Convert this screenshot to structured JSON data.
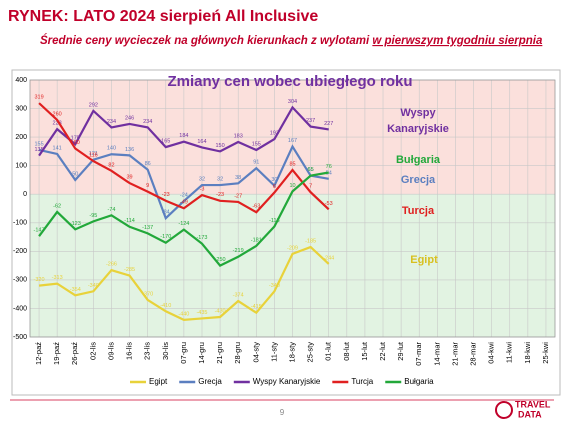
{
  "chart_data": {
    "type": "line",
    "header": "RYNEK: LATO 2024 sierpień All Inclusive",
    "subtitle": "Średnie ceny wycieczek na głównych kierunkach z wylotami",
    "subtitle_emphasis": "w pierwszym tygodniu sierpnia",
    "title": "Zmiany cen wobec ubiegłego roku",
    "categories": [
      "12-paź",
      "19-paź",
      "26-paź",
      "02-lis",
      "09-lis",
      "16-lis",
      "23-lis",
      "30-lis",
      "07-gru",
      "14-gru",
      "21-gru",
      "28-gru",
      "04-sty",
      "11-sty",
      "18-sty",
      "25-sty",
      "01-lut",
      "08-lut",
      "15-lut",
      "22-lut",
      "29-lut",
      "07-mar",
      "14-mar",
      "21-mar",
      "28-mar",
      "04-kwi",
      "11-kwi",
      "18-kwi",
      "25-kwi"
    ],
    "series": [
      {
        "name": "Egipt",
        "color": "#e8d23a",
        "values": [
          -320,
          -313,
          -354,
          -340,
          -266,
          -285,
          -370,
          -410,
          -440,
          -435,
          -430,
          -374,
          -415,
          -340,
          -209,
          -185,
          -244,
          null,
          null,
          null,
          null,
          null,
          null,
          null,
          null,
          null,
          null,
          null,
          null
        ]
      },
      {
        "name": "Grecja",
        "color": "#5b7fc0",
        "values": [
          155,
          141,
          50,
          121,
          140,
          136,
          86,
          -84,
          -24,
          32,
          32,
          38,
          91,
          30,
          167,
          65,
          54,
          null,
          null,
          null,
          null,
          null,
          null,
          null,
          null,
          null,
          null,
          null,
          null
        ]
      },
      {
        "name": "Wyspy Kanaryjskie",
        "color": "#7030a0",
        "values": [
          135,
          228,
          175,
          292,
          234,
          246,
          234,
          165,
          184,
          164,
          150,
          183,
          155,
          193,
          304,
          237,
          227,
          null,
          null,
          null,
          null,
          null,
          null,
          null,
          null,
          null,
          null,
          null,
          null
        ]
      },
      {
        "name": "Turcja",
        "color": "#e02020",
        "values": [
          319,
          260,
          160,
          116,
          82,
          39,
          9,
          -23,
          -49,
          -3,
          -23,
          -27,
          -63,
          6,
          85,
          7,
          -53,
          null,
          null,
          null,
          null,
          null,
          null,
          null,
          null,
          null,
          null,
          null,
          null
        ]
      },
      {
        "name": "Bułgaria",
        "color": "#22a83a",
        "values": [
          -147,
          -62,
          -123,
          -95,
          -74,
          -114,
          -137,
          -170,
          -124,
          -173,
          -250,
          -219,
          -181,
          -113,
          10,
          65,
          76,
          null,
          null,
          null,
          null,
          null,
          null,
          null,
          null,
          null,
          null,
          null,
          null
        ]
      }
    ],
    "annotations": [
      {
        "text": "Wyspy",
        "color": "#7030a0"
      },
      {
        "text": "Kanaryjskie",
        "color": "#7030a0"
      },
      {
        "text": "Bułgaria",
        "color": "#22a83a"
      },
      {
        "text": "Grecja",
        "color": "#5b7fc0"
      },
      {
        "text": "Turcja",
        "color": "#e02020"
      },
      {
        "text": "Egipt",
        "color": "#d8c020"
      }
    ],
    "ylim": [
      -500,
      400
    ],
    "yticks": [
      -500,
      -400,
      -300,
      -200,
      -100,
      0,
      100,
      200,
      300,
      400
    ],
    "grid": true,
    "legend": "bottom",
    "page_number": "9",
    "logo": [
      "TRAVEL",
      "DATA"
    ]
  }
}
